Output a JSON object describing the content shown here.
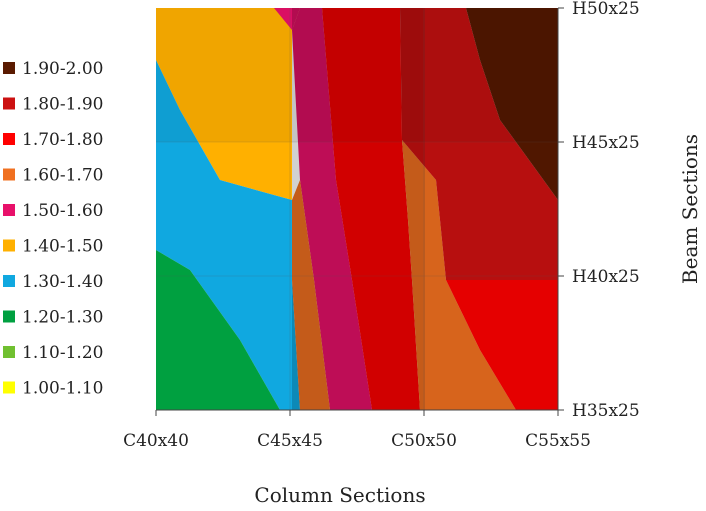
{
  "chart_data": {
    "type": "contour",
    "title": "",
    "xlabel": "Column Sections",
    "ylabel": "Beam Sections",
    "x_categories": [
      "C40x40",
      "C45x45",
      "C50x50",
      "C55x55"
    ],
    "y_categories": [
      "H35x25",
      "H40x25",
      "H45x25",
      "H50x25"
    ],
    "legend_position": "left",
    "levels": [
      {
        "label": "1.90-2.00",
        "color": "#5a1a00"
      },
      {
        "label": "1.80-1.90",
        "color": "#cc1111"
      },
      {
        "label": "1.70-1.80",
        "color": "#ff0000"
      },
      {
        "label": "1.60-1.70",
        "color": "#f07020"
      },
      {
        "label": "1.50-1.60",
        "color": "#e8106a"
      },
      {
        "label": "1.40-1.50",
        "color": "#ffb000"
      },
      {
        "label": "1.30-1.40",
        "color": "#10a8e0"
      },
      {
        "label": "1.20-1.30",
        "color": "#00a040"
      },
      {
        "label": "1.10-1.20",
        "color": "#70c030"
      },
      {
        "label": "1.00-1.10",
        "color": "#ffff00"
      }
    ],
    "grid": true
  }
}
